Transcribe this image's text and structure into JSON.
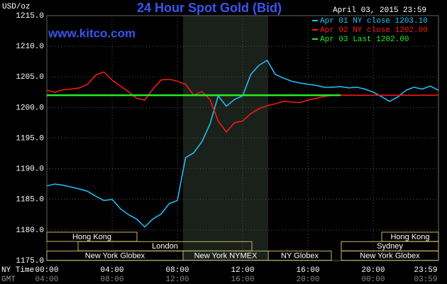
{
  "chart_data": {
    "type": "line",
    "title": "24 Hour Spot Gold (Bid)",
    "timestamp": "April 03, 2015 23:59",
    "watermark": "www.kitco.com",
    "ylabel": "USD/oz",
    "xlabel": "NY Time",
    "x2label": "GMT",
    "x": [
      0,
      0.5,
      1,
      1.5,
      2,
      2.5,
      3,
      3.5,
      4,
      4.5,
      5,
      5.5,
      6,
      6.5,
      7,
      7.5,
      8,
      8.5,
      9,
      9.5,
      10,
      10.5,
      11,
      11.5,
      12,
      12.5,
      13,
      13.5,
      14,
      14.5,
      15,
      15.5,
      16,
      16.5,
      17,
      17.5,
      18,
      18.5,
      19,
      19.5,
      20,
      20.5,
      21,
      21.5,
      22,
      22.5,
      23,
      23.5,
      24
    ],
    "series": [
      {
        "name": "Apr 01 NY close 1203.10",
        "color": "#22c4ff",
        "values": [
          1187.2,
          1187.5,
          1187.3,
          1187.0,
          1186.7,
          1186.3,
          1185.5,
          1184.8,
          1185.0,
          1183.5,
          1182.5,
          1181.8,
          1180.5,
          1181.8,
          1182.6,
          1184.3,
          1184.8,
          1191.8,
          1192.6,
          1194.4,
          1197.3,
          1201.9,
          1200.2,
          1201.3,
          1201.9,
          1205.4,
          1206.9,
          1207.7,
          1205.4,
          1204.8,
          1204.3,
          1204.0,
          1203.8,
          1203.6,
          1203.3,
          1203.3,
          1203.4,
          1203.2,
          1203.3,
          1203.0,
          1202.5,
          1201.8,
          1201.0,
          1201.7,
          1202.8,
          1203.3,
          1203.0,
          1203.5,
          1202.8
        ]
      },
      {
        "name": "Apr 02 NY close 1202.00",
        "color": "#ff1a1a",
        "values": [
          1202.8,
          1202.5,
          1202.9,
          1203.0,
          1203.2,
          1203.8,
          1205.3,
          1205.8,
          1204.5,
          1203.5,
          1202.6,
          1201.5,
          1201.2,
          1203.0,
          1204.5,
          1204.6,
          1204.3,
          1203.8,
          1202.0,
          1202.6,
          1201.3,
          1197.8,
          1196.0,
          1197.5,
          1197.8,
          1199.0,
          1199.8,
          1200.3,
          1200.6,
          1201.0,
          1200.9,
          1200.8,
          1201.2,
          1201.5,
          1201.8,
          1202.0,
          1202.0,
          1202.0,
          1202.0,
          1202.0,
          1202.0,
          1202.0,
          1202.0,
          1202.0,
          1202.0,
          1202.0,
          1202.0,
          1202.0,
          1202.0
        ]
      },
      {
        "name": "Apr 03 Last 1202.00",
        "color": "#22ee22",
        "values": [
          1202,
          1202,
          1202,
          1202,
          1202,
          1202,
          1202,
          1202,
          1202,
          1202,
          1202,
          1202,
          1202,
          1202,
          1202,
          1202,
          1202,
          1202,
          1202,
          1202,
          1202,
          1202,
          1202,
          1202,
          1202,
          1202,
          1202,
          1202,
          1202,
          1202,
          1202,
          1202,
          1202,
          1202,
          1202,
          1202,
          1202,
          null,
          null,
          null,
          null,
          null,
          null,
          null,
          null,
          null,
          null,
          null,
          null
        ]
      }
    ],
    "xlim": [
      0,
      24
    ],
    "xticks": [
      {
        "value": 0,
        "label": "00:00"
      },
      {
        "value": 4,
        "label": "04:00"
      },
      {
        "value": 8,
        "label": "08:00"
      },
      {
        "value": 12,
        "label": "12:00"
      },
      {
        "value": 16,
        "label": "16:00"
      },
      {
        "value": 20,
        "label": "20:00"
      },
      {
        "value": 23.9833,
        "label": "23:59"
      }
    ],
    "gmt_labels": [
      "04:00",
      "08:00",
      "12:00",
      "16:00",
      "20:00",
      "00:00",
      "03:59"
    ],
    "ylim": [
      1175,
      1215
    ],
    "yticks": [
      {
        "value": 1175,
        "label": "1175.0"
      },
      {
        "value": 1180,
        "label": "1180.0"
      },
      {
        "value": 1185,
        "label": "1185.0"
      },
      {
        "value": 1190,
        "label": "1190.0"
      },
      {
        "value": 1195,
        "label": "1195.0"
      },
      {
        "value": 1200,
        "label": "1200.0"
      },
      {
        "value": 1205,
        "label": "1205.0"
      },
      {
        "value": 1210,
        "label": "1210.0"
      },
      {
        "value": 1215,
        "label": "1215.0"
      }
    ],
    "grid": true,
    "sessions": [
      "Hong Kong",
      "London",
      "New York Globex",
      "New York NYMEX",
      "NY Globex",
      "Hong Kong",
      "Sydney",
      "New York Globex"
    ]
  }
}
